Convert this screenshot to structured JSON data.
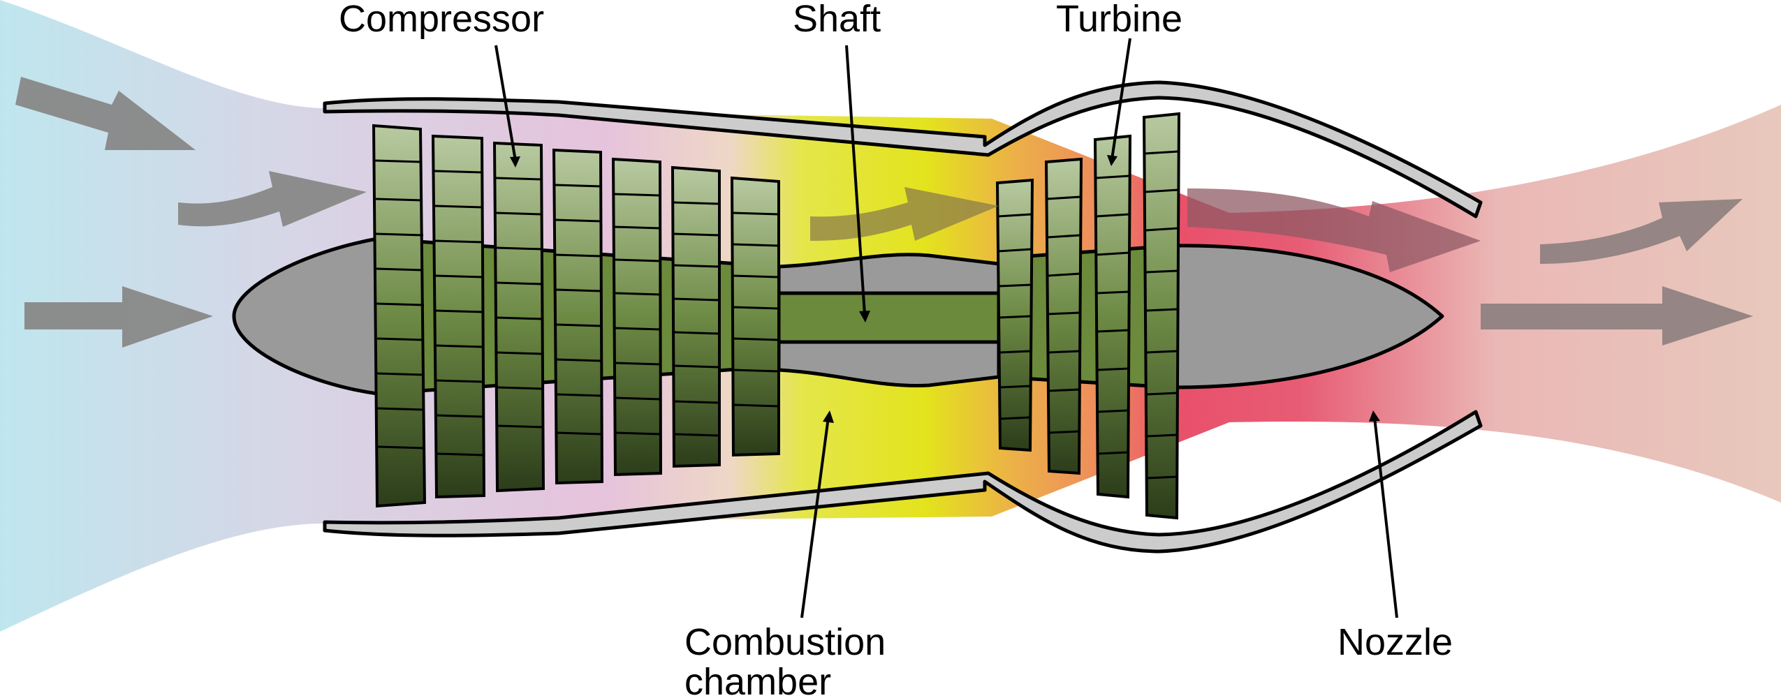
{
  "labels": {
    "compressor": "Compressor",
    "shaft": "Shaft",
    "turbine": "Turbine",
    "combustion_line1": "Combustion",
    "combustion_line2": "chamber",
    "nozzle": "Nozzle"
  },
  "colors": {
    "intake": "#bfe3ec",
    "compressor_zone": "#e7c6dd",
    "combustion_yellow": "#e3e31d",
    "turbine_orange": "#ef8f5a",
    "exhaust_red": "#e85570",
    "exhaust_plume": "#e9c4b8",
    "casing": "#cccccc",
    "hub": "#9a9a9a",
    "shaft": "#6b8a3c",
    "blade_light": "#b6c79e",
    "blade_dark": "#2e401b",
    "arrow": "#888888"
  }
}
